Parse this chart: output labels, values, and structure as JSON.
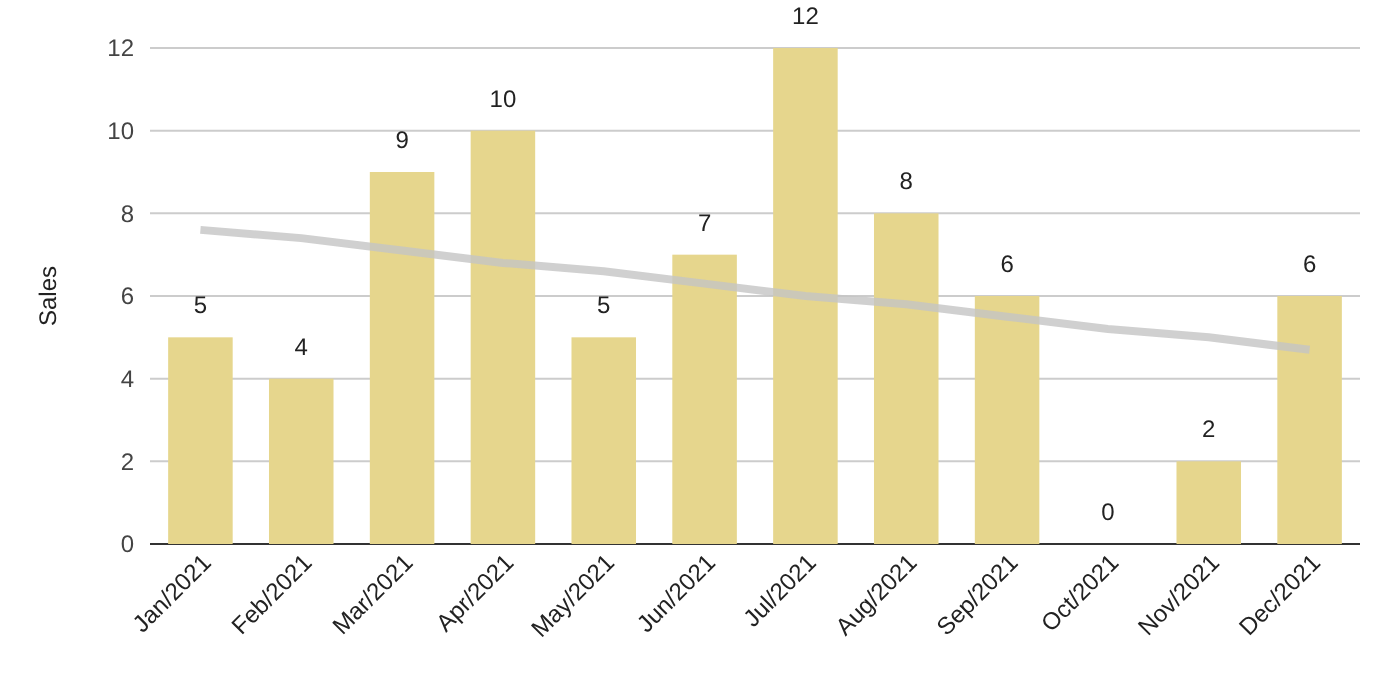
{
  "chart_data": {
    "type": "bar",
    "ylabel": "Sales",
    "categories": [
      "Jan/2021",
      "Feb/2021",
      "Mar/2021",
      "Apr/2021",
      "May/2021",
      "Jun/2021",
      "Jul/2021",
      "Aug/2021",
      "Sep/2021",
      "Oct/2021",
      "Nov/2021",
      "Dec/2021"
    ],
    "series": [
      {
        "color": "#e6d68d",
        "values": [
          5,
          4,
          9,
          10,
          5,
          7,
          12,
          8,
          6,
          0,
          2,
          6
        ],
        "value_labels": [
          "5",
          "4",
          "9",
          "10",
          "5",
          "7",
          "12",
          "8",
          "6",
          "0",
          "2",
          "6"
        ]
      },
      {
        "type": "line",
        "color": "#c4c4c4",
        "values": [
          7.6,
          7.4,
          7.1,
          6.8,
          6.6,
          6.3,
          6.0,
          5.8,
          5.5,
          5.2,
          5.0,
          4.7
        ]
      }
    ],
    "ylim": [
      0,
      12
    ],
    "yticks": [
      0,
      2,
      4,
      6,
      8,
      10,
      12
    ],
    "grid": "y"
  }
}
